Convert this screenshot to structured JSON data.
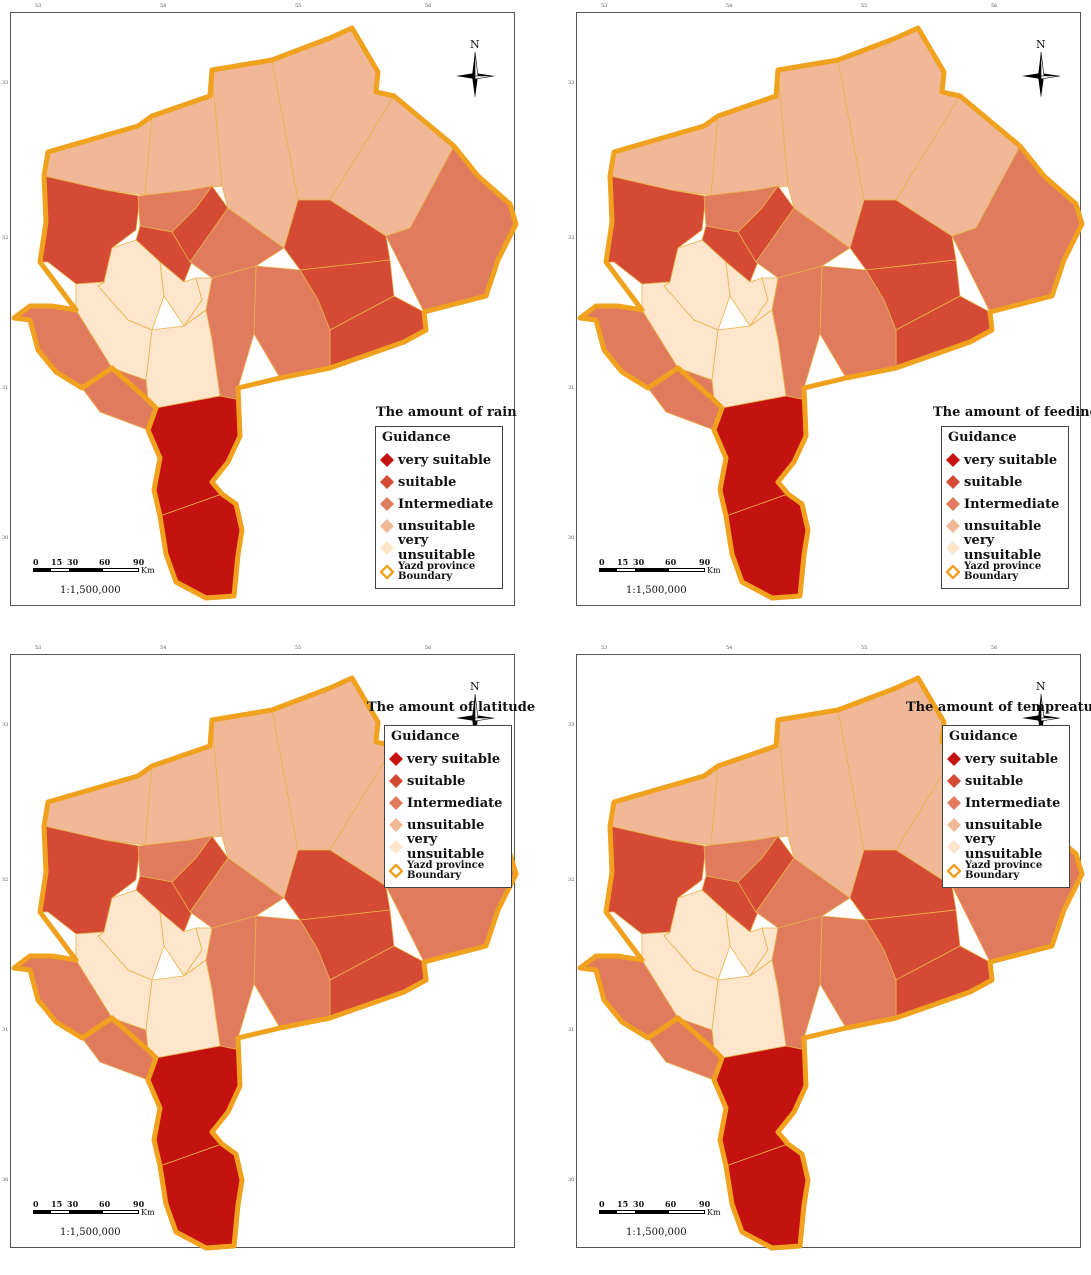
{
  "maps": [
    {
      "title": "The amount of rain",
      "class_colors": [
        "#c3120f",
        "#d44a35",
        "#e07b5e",
        "#f0b897",
        "#fde6cc"
      ]
    },
    {
      "title": "The amount of feeding"
    },
    {
      "title": "The amount of latitude"
    },
    {
      "title": "The amount of tempreature"
    }
  ],
  "legend": {
    "title": "Guidance",
    "items": [
      {
        "label": "very suitable",
        "color": "#c3120f"
      },
      {
        "label": "suitable",
        "color": "#d44a35"
      },
      {
        "label": "Intermediate",
        "color": "#e07b5e"
      },
      {
        "label": "unsuitable",
        "color": "#f0b897"
      },
      {
        "label": "very unsuitable",
        "color": "#fde6cc"
      }
    ],
    "boundary_label_line1": "Yazd province",
    "boundary_label_line2": "Boundary",
    "boundary_color": "#f0a11e"
  },
  "north_label": "N",
  "scale": {
    "ticks": [
      "0",
      "15",
      "30",
      "60",
      "90"
    ],
    "unit": "Km",
    "ratio": "1:1,500,000"
  },
  "grid_labels": {
    "top": [
      "53",
      "54",
      "55",
      "56"
    ],
    "left": [
      "33",
      "32",
      "31",
      "30"
    ]
  }
}
